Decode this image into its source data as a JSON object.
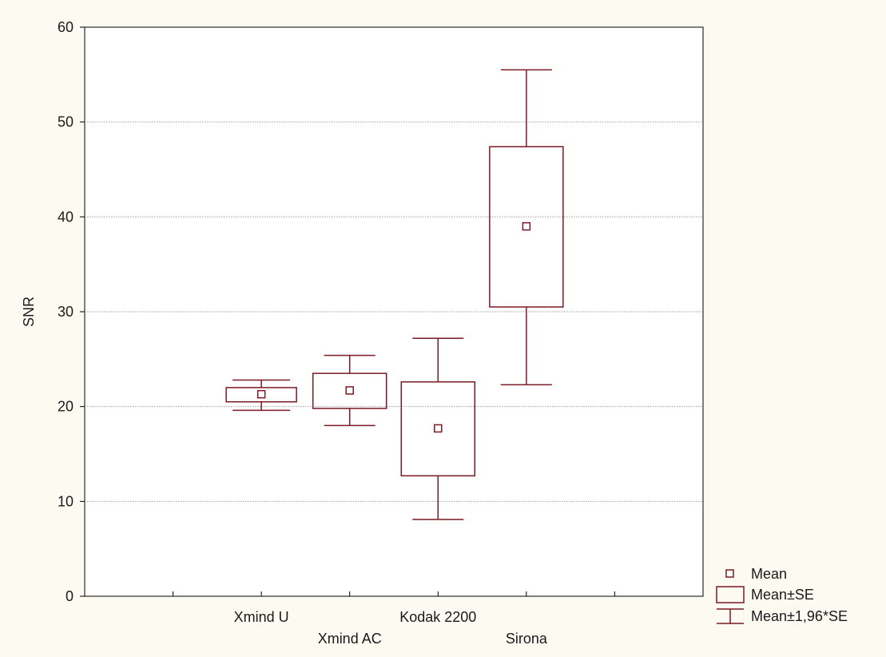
{
  "colors": {
    "background": "#fdfaf2",
    "plot_background": "#ffffff",
    "series": "#7a1a22",
    "grid": "#a0a0a0",
    "axis": "#000000"
  },
  "chart_data": {
    "type": "box",
    "title": "",
    "xlabel": "",
    "ylabel": "SNR",
    "ylim": [
      0,
      60
    ],
    "yticks": [
      0,
      10,
      20,
      30,
      40,
      50,
      60
    ],
    "grid": "horizontal dotted",
    "legend_position": "bottom-right, outside plot",
    "categories": [
      "Xmind U",
      "Xmind AC",
      "Kodak 2200",
      "Sirona"
    ],
    "series": [
      {
        "name": "Xmind U",
        "mean": 21.3,
        "mean_minus_se": 20.5,
        "mean_plus_se": 22.0,
        "mean_minus_1_96se": 19.6,
        "mean_plus_1_96se": 22.8
      },
      {
        "name": "Xmind AC",
        "mean": 21.7,
        "mean_minus_se": 19.8,
        "mean_plus_se": 23.5,
        "mean_minus_1_96se": 18.0,
        "mean_plus_1_96se": 25.4
      },
      {
        "name": "Kodak 2200",
        "mean": 17.7,
        "mean_minus_se": 12.7,
        "mean_plus_se": 22.6,
        "mean_minus_1_96se": 8.1,
        "mean_plus_1_96se": 27.2
      },
      {
        "name": "Sirona",
        "mean": 39.0,
        "mean_minus_se": 30.5,
        "mean_plus_se": 47.4,
        "mean_minus_1_96se": 22.3,
        "mean_plus_1_96se": 55.5
      }
    ],
    "legend": [
      {
        "symbol": "point",
        "label": "Mean"
      },
      {
        "symbol": "box",
        "label": "Mean±SE"
      },
      {
        "symbol": "whisker",
        "label": "Mean±1,96*SE"
      }
    ]
  }
}
